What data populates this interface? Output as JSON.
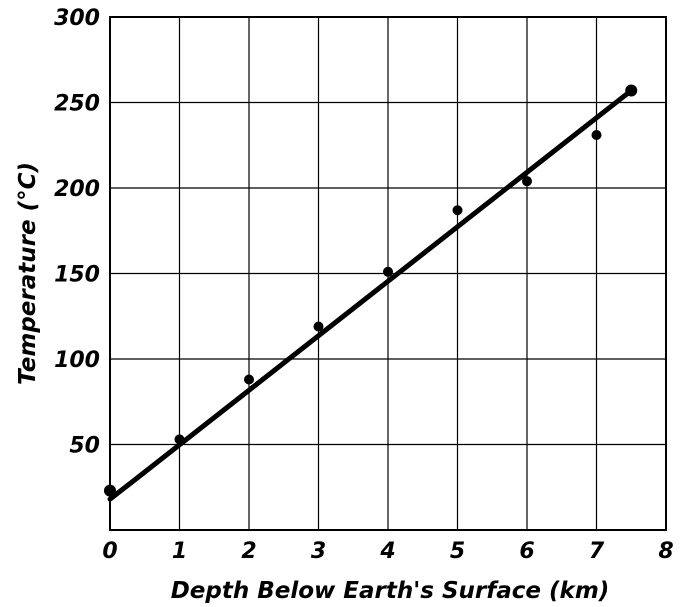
{
  "chart_data": {
    "type": "scatter",
    "title": "",
    "xlabel": "Depth Below Earth's Surface (km)",
    "ylabel": "Temperature (°C)",
    "xlim": [
      0,
      8
    ],
    "ylim": [
      0,
      300
    ],
    "x_ticks": [
      0,
      1,
      2,
      3,
      4,
      5,
      6,
      7,
      8
    ],
    "y_ticks": [
      50,
      100,
      150,
      200,
      250,
      300
    ],
    "grid": true,
    "legend": "none",
    "series": [
      {
        "x": [
          0,
          1,
          2,
          3,
          4,
          5,
          6,
          7,
          7.5
        ],
        "y": [
          23,
          53,
          88,
          119,
          151,
          187,
          204,
          231,
          257
        ]
      }
    ],
    "trendline": {
      "x": [
        0,
        7.5
      ],
      "y": [
        18,
        257
      ]
    },
    "colors": {
      "ink": "#000000",
      "background": "#ffffff"
    }
  }
}
